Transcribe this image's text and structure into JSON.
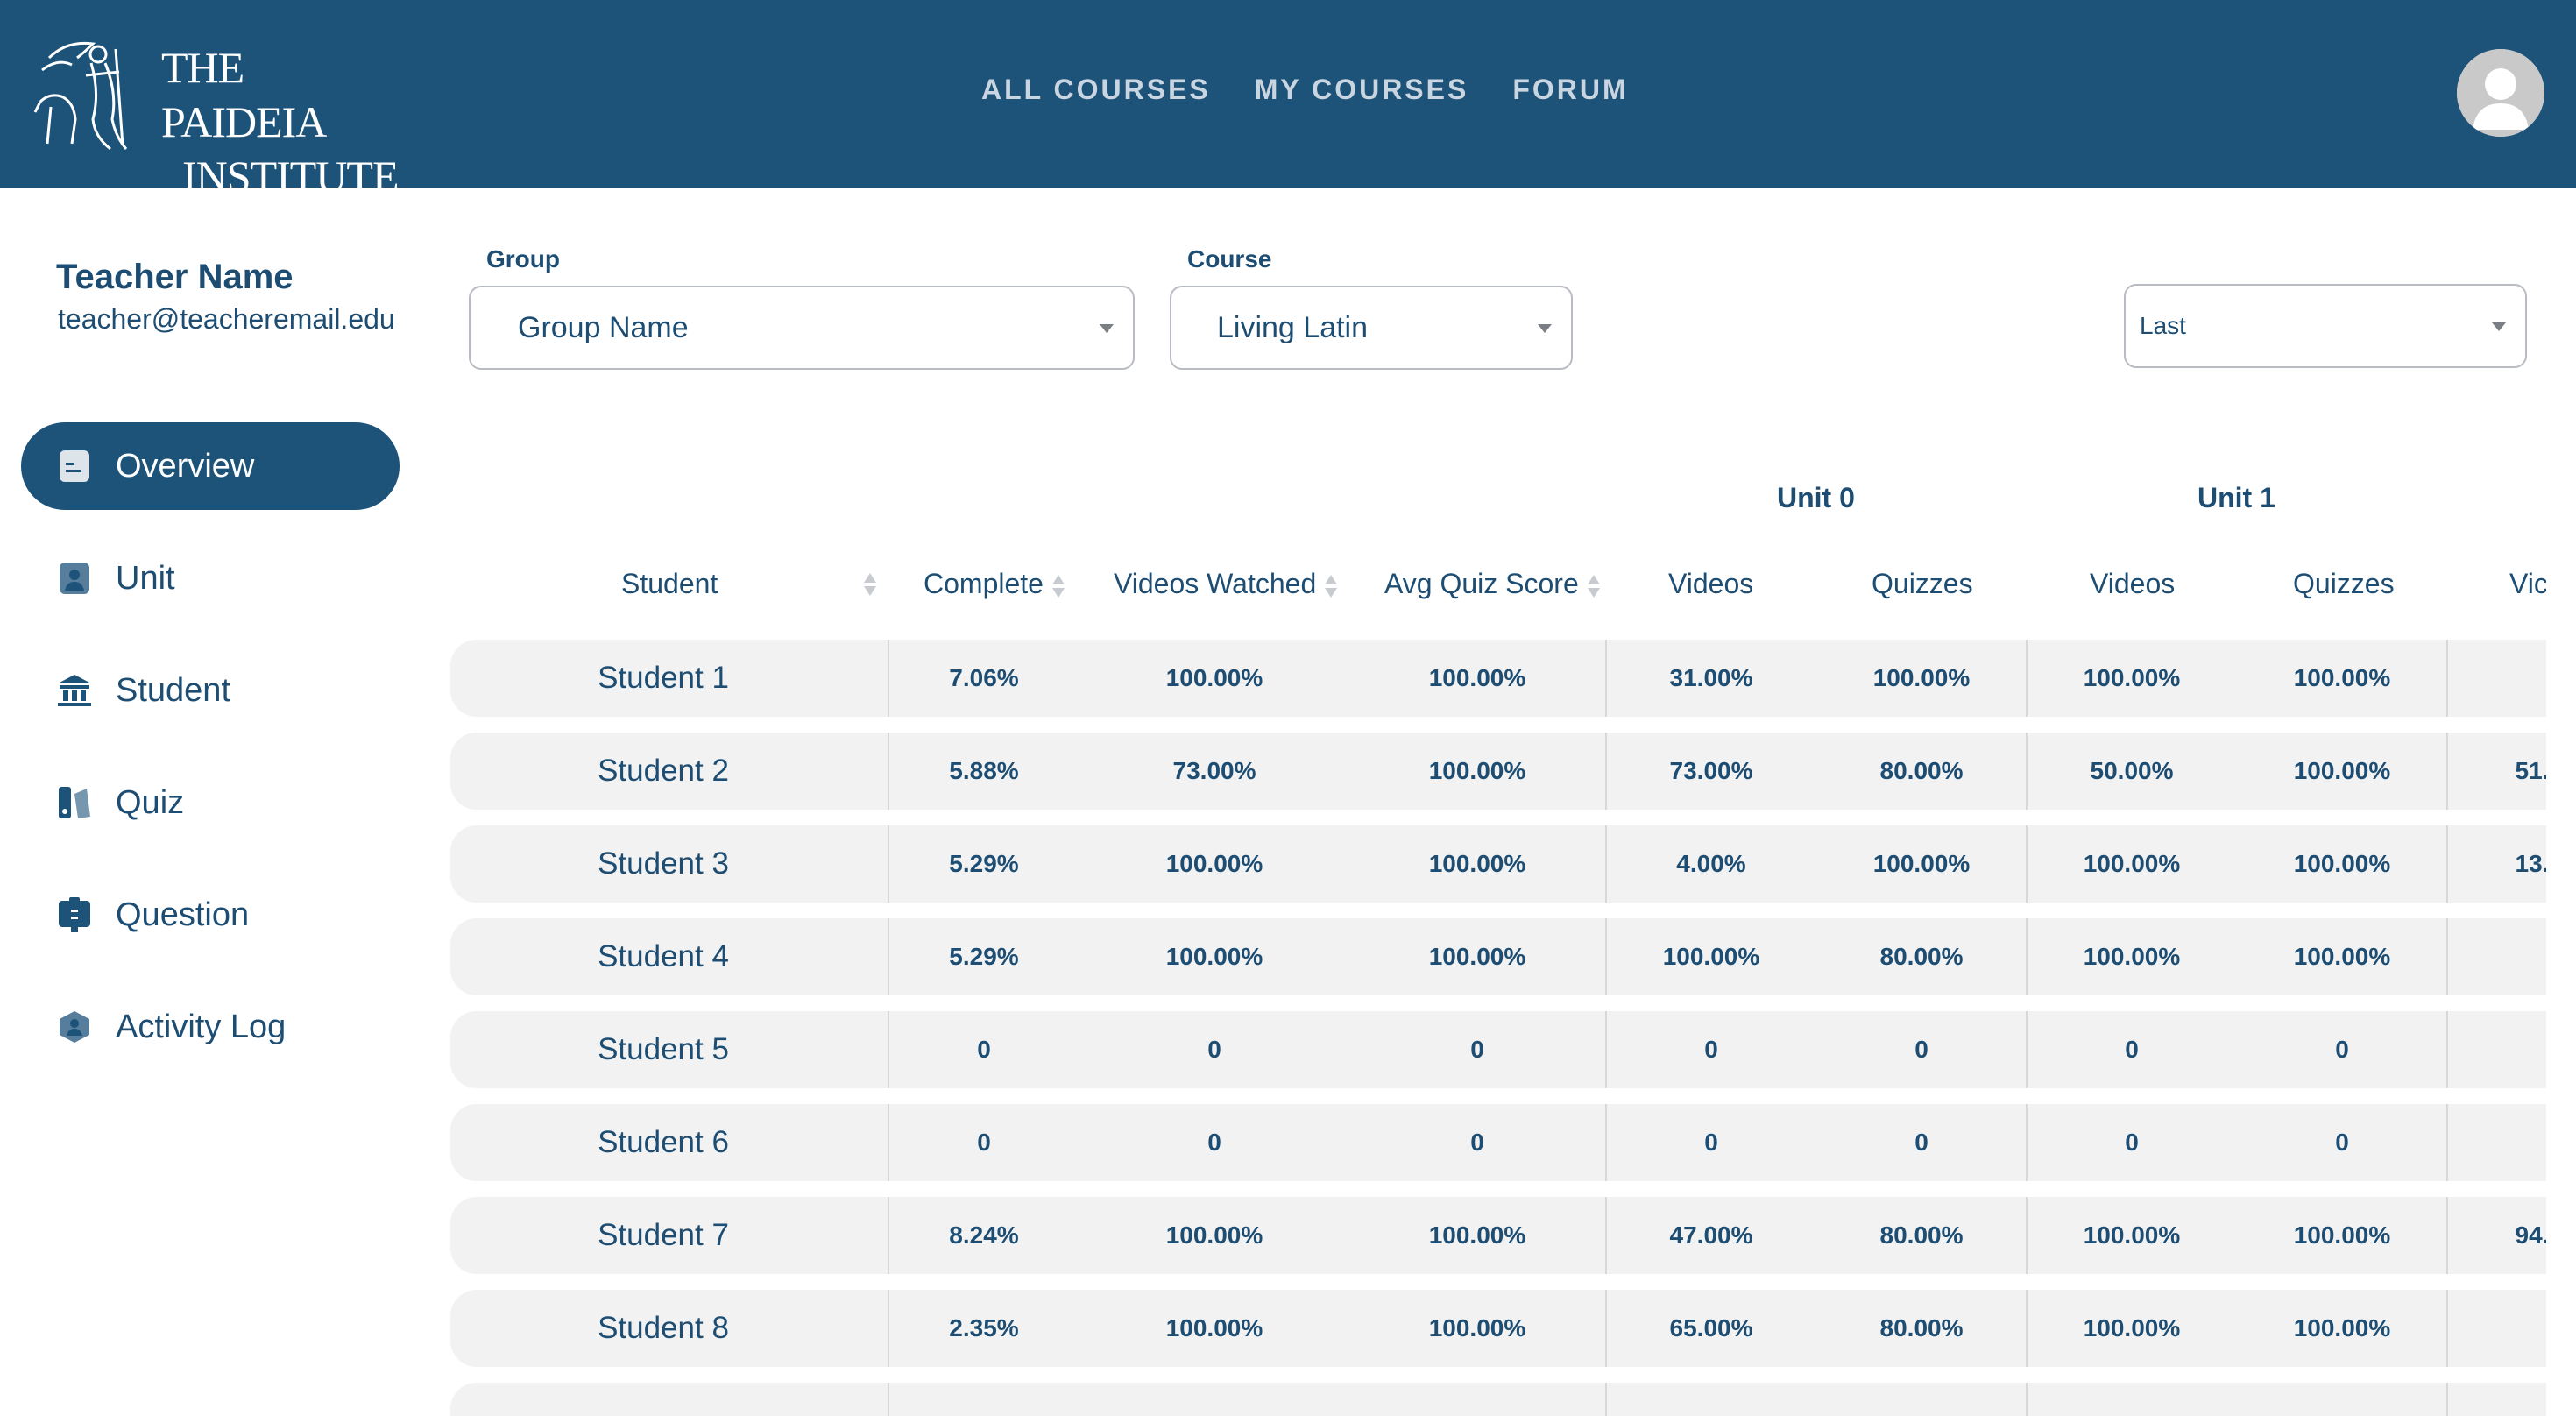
{
  "brand": {
    "line1": "THE PAIDEIA",
    "line2": "INSTITUTE"
  },
  "nav": [
    "ALL COURSES",
    "MY COURSES",
    "FORUM"
  ],
  "profile": {
    "name": "Teacher Name",
    "email": "teacher@teacheremail.edu"
  },
  "sidebar": [
    {
      "label": "Overview",
      "icon": "overview-icon",
      "active": true
    },
    {
      "label": "Unit",
      "icon": "unit-icon",
      "active": false
    },
    {
      "label": "Student",
      "icon": "student-icon",
      "active": false
    },
    {
      "label": "Quiz",
      "icon": "quiz-icon",
      "active": false
    },
    {
      "label": "Question",
      "icon": "question-icon",
      "active": false
    },
    {
      "label": "Activity Log",
      "icon": "activity-log-icon",
      "active": false
    }
  ],
  "filters": {
    "group_label": "Group",
    "group_value": "Group Name",
    "course_label": "Course",
    "course_value": "Living Latin",
    "sort_value": "Last"
  },
  "table": {
    "unit_headers": [
      "Unit 0",
      "Unit 1"
    ],
    "columns": [
      "Student",
      "Complete",
      "Videos Watched",
      "Avg Quiz Score",
      "Videos",
      "Quizzes",
      "Videos",
      "Quizzes",
      "Vic"
    ],
    "rows": [
      [
        "Student 1",
        "7.06%",
        "100.00%",
        "100.00%",
        "31.00%",
        "100.00%",
        "100.00%",
        "100.00%",
        ""
      ],
      [
        "Student 2",
        "5.88%",
        "73.00%",
        "100.00%",
        "73.00%",
        "80.00%",
        "50.00%",
        "100.00%",
        "51."
      ],
      [
        "Student 3",
        "5.29%",
        "100.00%",
        "100.00%",
        "4.00%",
        "100.00%",
        "100.00%",
        "100.00%",
        "13."
      ],
      [
        "Student 4",
        "5.29%",
        "100.00%",
        "100.00%",
        "100.00%",
        "80.00%",
        "100.00%",
        "100.00%",
        ""
      ],
      [
        "Student 5",
        "0",
        "0",
        "0",
        "0",
        "0",
        "0",
        "0",
        ""
      ],
      [
        "Student 6",
        "0",
        "0",
        "0",
        "0",
        "0",
        "0",
        "0",
        ""
      ],
      [
        "Student 7",
        "8.24%",
        "100.00%",
        "100.00%",
        "47.00%",
        "80.00%",
        "100.00%",
        "100.00%",
        "94."
      ],
      [
        "Student 8",
        "2.35%",
        "100.00%",
        "100.00%",
        "65.00%",
        "80.00%",
        "100.00%",
        "100.00%",
        ""
      ]
    ]
  },
  "colors": {
    "primary": "#1d5279",
    "text": "#1d4d72",
    "row_bg": "#f2f2f2"
  }
}
